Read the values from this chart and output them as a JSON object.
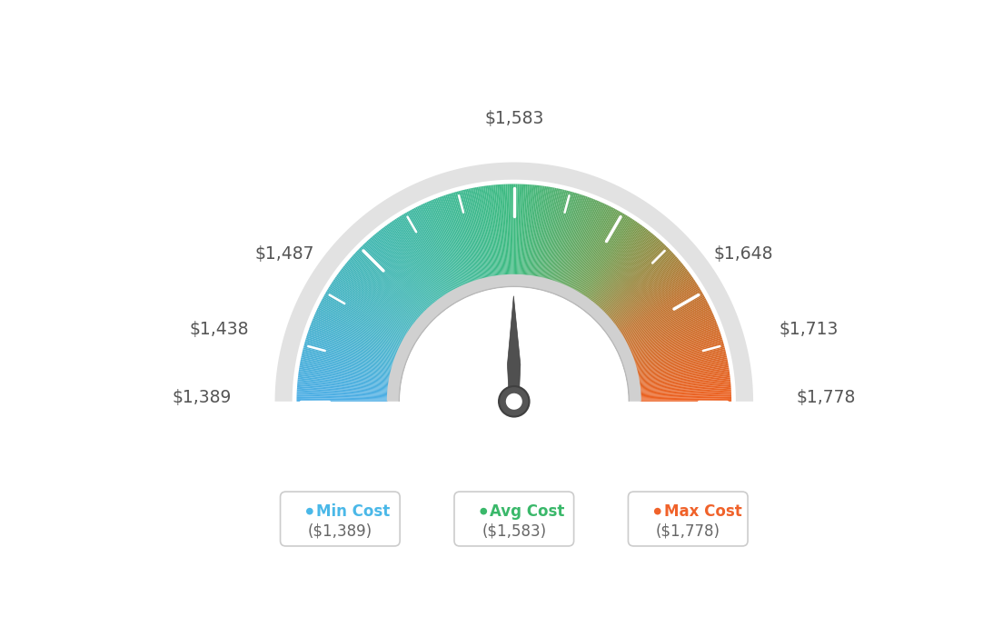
{
  "min_val": 1389,
  "avg_val": 1583,
  "max_val": 1778,
  "tick_labels": [
    "$1,389",
    "$1,438",
    "$1,487",
    "$1,583",
    "$1,648",
    "$1,713",
    "$1,778"
  ],
  "tick_values": [
    1389,
    1438,
    1487,
    1583,
    1648,
    1713,
    1778
  ],
  "legend": [
    {
      "label": "Min Cost",
      "sublabel": "($1,389)",
      "color": "#4ab8e8"
    },
    {
      "label": "Avg Cost",
      "sublabel": "($1,583)",
      "color": "#3ab86a"
    },
    {
      "label": "Max Cost",
      "sublabel": "($1,778)",
      "color": "#f0622a"
    }
  ],
  "color_stops": [
    [
      0.0,
      [
        0.3,
        0.68,
        0.9
      ]
    ],
    [
      0.28,
      [
        0.25,
        0.72,
        0.68
      ]
    ],
    [
      0.5,
      [
        0.24,
        0.73,
        0.5
      ]
    ],
    [
      0.68,
      [
        0.45,
        0.62,
        0.32
      ]
    ],
    [
      0.82,
      [
        0.75,
        0.45,
        0.18
      ]
    ],
    [
      1.0,
      [
        0.93,
        0.38,
        0.13
      ]
    ]
  ],
  "bg_color": "#ffffff",
  "outer_r": 1.0,
  "inner_r": 0.58,
  "rim_outer": 1.1,
  "rim_inner": 1.02,
  "needle_value": 1583,
  "label_positions": {
    "1389": [
      -1.3,
      0.02,
      "right"
    ],
    "1438": [
      -1.22,
      0.33,
      "right"
    ],
    "1487": [
      -0.92,
      0.68,
      "right"
    ],
    "1583": [
      0.0,
      1.3,
      "center"
    ],
    "1648": [
      0.92,
      0.68,
      "left"
    ],
    "1713": [
      1.22,
      0.33,
      "left"
    ],
    "1778": [
      1.3,
      0.02,
      "left"
    ]
  }
}
